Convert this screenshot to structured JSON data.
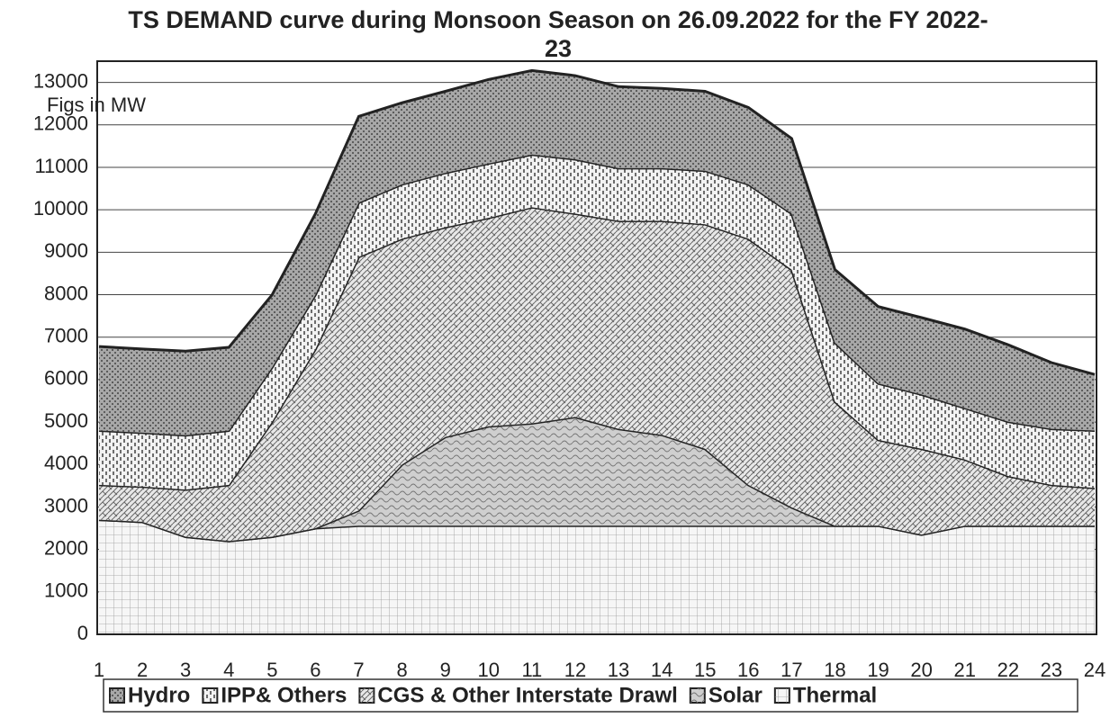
{
  "chart_data": {
    "type": "stacked_area",
    "title": "TS DEMAND curve  during Monsoon Season on 26.09.2022 for the FY 2022-23",
    "annotation": "Figs in MW",
    "categories": [
      "1",
      "2",
      "3",
      "4",
      "5",
      "6",
      "7",
      "8",
      "9",
      "10",
      "11",
      "12",
      "13",
      "14",
      "15",
      "16",
      "17",
      "18",
      "19",
      "20",
      "21",
      "22",
      "23",
      "24"
    ],
    "series": [
      {
        "name": "Hydro",
        "color": "#a8a8a8",
        "values": [
          1980,
          1970,
          1980,
          1960,
          1710,
          1910,
          2030,
          1920,
          1920,
          1980,
          1980,
          1970,
          1920,
          1880,
          1870,
          1810,
          1770,
          1720,
          1810,
          1810,
          1860,
          1810,
          1560,
          1320
        ]
      },
      {
        "name": "IPP& Others",
        "color": "#f2f2f2",
        "values": [
          1280,
          1270,
          1280,
          1280,
          1280,
          1280,
          1280,
          1280,
          1280,
          1280,
          1240,
          1280,
          1240,
          1240,
          1260,
          1280,
          1320,
          1390,
          1330,
          1280,
          1210,
          1280,
          1320,
          1350
        ]
      },
      {
        "name": "CGS & Other Interstate Drawl",
        "color": "#e8e8e8",
        "values": [
          820,
          830,
          1110,
          1320,
          2710,
          4220,
          5970,
          5320,
          4940,
          4910,
          5090,
          4790,
          4900,
          5040,
          5290,
          5800,
          5600,
          2920,
          2020,
          2020,
          1560,
          1170,
          960,
          890
        ]
      },
      {
        "name": "Solar",
        "color": "#cfcfcf",
        "values": [
          0,
          0,
          0,
          0,
          0,
          0,
          360,
          1440,
          2090,
          2340,
          2410,
          2560,
          2280,
          2140,
          1810,
          960,
          430,
          0,
          0,
          0,
          0,
          0,
          0,
          0
        ]
      },
      {
        "name": "Thermal",
        "color": "#f6f6f6",
        "values": [
          2700,
          2650,
          2300,
          2200,
          2300,
          2500,
          2560,
          2560,
          2560,
          2560,
          2560,
          2560,
          2560,
          2560,
          2560,
          2560,
          2560,
          2560,
          2560,
          2350,
          2560,
          2560,
          2560,
          2560
        ]
      }
    ],
    "stacked": true,
    "ylim": [
      0,
      13500
    ],
    "yticks": [
      0,
      1000,
      2000,
      3000,
      4000,
      5000,
      6000,
      7000,
      8000,
      9000,
      10000,
      11000,
      12000,
      13000
    ],
    "grid": true,
    "legend": "bottom"
  }
}
